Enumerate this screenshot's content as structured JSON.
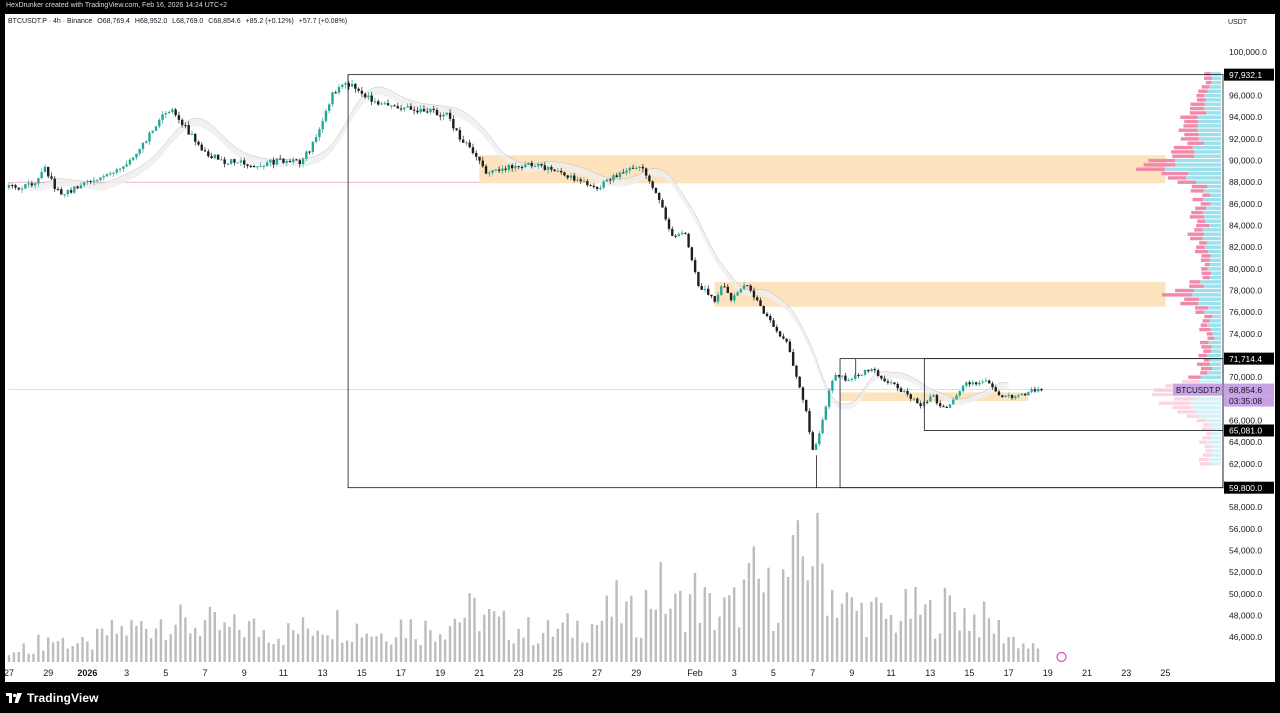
{
  "header": {
    "credit": "HexDrunker created with TradingView.com, Feb 16, 2026 14:24 UTC+2"
  },
  "legend": {
    "symbol": "BTCUSDT.P · 4h · Binance",
    "open": "O68,769.4",
    "high": "H68,952.0",
    "low": "L68,769.0",
    "close": "C68,854.6",
    "change": "+85.2 (+0.12%)",
    "change2": "+57.7 (+0.08%)"
  },
  "currency": "USDT",
  "footer": {
    "brand": "TradingView"
  },
  "chart_data": {
    "type": "candlestick",
    "timeframe": "4h",
    "ylim": [
      45000,
      101500
    ],
    "y_ticks": [
      46000,
      48000,
      50000,
      52000,
      54000,
      56000,
      58000,
      60000,
      62000,
      64000,
      66000,
      68000,
      70000,
      72000,
      74000,
      76000,
      78000,
      80000,
      82000,
      84000,
      86000,
      88000,
      90000,
      92000,
      94000,
      96000,
      98000,
      100000
    ],
    "y_tick_labels": [
      "46,000.0",
      "48,000.0",
      "50,000.0",
      "52,000.0",
      "54,000.0",
      "56,000.0",
      "58,000.0",
      "",
      "62,000.0",
      "64,000.0",
      "66,000.0",
      "",
      "70,000.0",
      "",
      "74,000.0",
      "76,000.0",
      "78,000.0",
      "80,000.0",
      "82,000.0",
      "84,000.0",
      "86,000.0",
      "88,000.0",
      "90,000.0",
      "92,000.0",
      "94,000.0",
      "96,000.0",
      "",
      "100,000.0"
    ],
    "x_ticks": [
      {
        "day": -2,
        "label": "27"
      },
      {
        "day": 0,
        "label": "29"
      },
      {
        "day": 2,
        "label": "2026",
        "bold": true
      },
      {
        "day": 4,
        "label": "3"
      },
      {
        "day": 6,
        "label": "5"
      },
      {
        "day": 8,
        "label": "7"
      },
      {
        "day": 10,
        "label": "9"
      },
      {
        "day": 12,
        "label": "11"
      },
      {
        "day": 14,
        "label": "13"
      },
      {
        "day": 16,
        "label": "15"
      },
      {
        "day": 18,
        "label": "17"
      },
      {
        "day": 20,
        "label": "19"
      },
      {
        "day": 22,
        "label": "21"
      },
      {
        "day": 24,
        "label": "23"
      },
      {
        "day": 26,
        "label": "25"
      },
      {
        "day": 28,
        "label": "27"
      },
      {
        "day": 30,
        "label": "29"
      },
      {
        "day": 33,
        "label": "Feb"
      },
      {
        "day": 35,
        "label": "3"
      },
      {
        "day": 37,
        "label": "5"
      },
      {
        "day": 39,
        "label": "7"
      },
      {
        "day": 41,
        "label": "9"
      },
      {
        "day": 43,
        "label": "11"
      },
      {
        "day": 45,
        "label": "13"
      },
      {
        "day": 47,
        "label": "15"
      },
      {
        "day": 49,
        "label": "17"
      },
      {
        "day": 51,
        "label": "19"
      },
      {
        "day": 53,
        "label": "21"
      },
      {
        "day": 55,
        "label": "23"
      },
      {
        "day": 57,
        "label": "25"
      }
    ],
    "price_path": [
      [
        -2.0,
        87500
      ],
      [
        -1.0,
        87600
      ],
      [
        -0.5,
        87800
      ],
      [
        0.0,
        89200
      ],
      [
        0.6,
        87200
      ],
      [
        1.2,
        87000
      ],
      [
        2.0,
        88000
      ],
      [
        3.0,
        88400
      ],
      [
        4.0,
        89500
      ],
      [
        5.0,
        91500
      ],
      [
        5.8,
        93800
      ],
      [
        6.5,
        94500
      ],
      [
        7.2,
        93000
      ],
      [
        8.0,
        91000
      ],
      [
        9.0,
        90000
      ],
      [
        10.0,
        89800
      ],
      [
        10.8,
        89600
      ],
      [
        12.0,
        90000
      ],
      [
        13.0,
        89900
      ],
      [
        13.6,
        91200
      ],
      [
        14.2,
        93800
      ],
      [
        14.7,
        96200
      ],
      [
        15.3,
        97400
      ],
      [
        16.0,
        96300
      ],
      [
        17.0,
        95200
      ],
      [
        18.0,
        94800
      ],
      [
        19.5,
        94600
      ],
      [
        20.5,
        94200
      ],
      [
        21.2,
        92000
      ],
      [
        22.0,
        90500
      ],
      [
        22.5,
        88600
      ],
      [
        23.0,
        89200
      ],
      [
        23.8,
        89500
      ],
      [
        25.0,
        89700
      ],
      [
        26.0,
        89000
      ],
      [
        27.0,
        88400
      ],
      [
        28.0,
        87300
      ],
      [
        28.8,
        88300
      ],
      [
        29.6,
        89000
      ],
      [
        30.3,
        89700
      ],
      [
        30.9,
        88100
      ],
      [
        31.5,
        85500
      ],
      [
        32.0,
        82800
      ],
      [
        32.6,
        83500
      ],
      [
        33.3,
        78700
      ],
      [
        34.2,
        76900
      ],
      [
        34.6,
        78700
      ],
      [
        35.0,
        77200
      ],
      [
        35.8,
        78500
      ],
      [
        36.5,
        76400
      ],
      [
        37.3,
        74500
      ],
      [
        37.9,
        73000
      ],
      [
        38.3,
        70200
      ],
      [
        38.8,
        67200
      ],
      [
        39.2,
        63100
      ],
      [
        39.6,
        65200
      ],
      [
        40.0,
        68900
      ],
      [
        40.4,
        70400
      ],
      [
        40.9,
        69700
      ],
      [
        41.5,
        70300
      ],
      [
        42.2,
        70700
      ],
      [
        42.8,
        69800
      ],
      [
        43.4,
        69300
      ],
      [
        44.0,
        68300
      ],
      [
        44.7,
        67500
      ],
      [
        45.3,
        68300
      ],
      [
        45.8,
        67000
      ],
      [
        46.3,
        67800
      ],
      [
        46.9,
        69300
      ],
      [
        47.5,
        69500
      ],
      [
        48.0,
        69900
      ],
      [
        48.4,
        68900
      ],
      [
        48.9,
        68200
      ],
      [
        49.4,
        68200
      ],
      [
        49.9,
        68300
      ],
      [
        50.3,
        68800
      ],
      [
        50.7,
        68855
      ]
    ],
    "highs": [
      [
        15.3,
        97932
      ],
      [
        41.2,
        71714
      ]
    ],
    "lows": [
      [
        39.2,
        59800
      ]
    ],
    "zones": [
      {
        "from_day": 22.0,
        "to_day": 57.0,
        "low": 87900,
        "high": 90500,
        "color": "#fce3bd"
      },
      {
        "from_day": 34.0,
        "to_day": 57.0,
        "low": 76500,
        "high": 78800,
        "color": "#fce3bd"
      },
      {
        "from_day": 40.4,
        "to_day": 50.0,
        "low": 67800,
        "high": 68600,
        "color": "#fce3bd"
      }
    ],
    "boxes": [
      {
        "from_day": 15.3,
        "to_day": 60.5,
        "low": 59800,
        "high": 97932.1
      },
      {
        "from_day": 40.4,
        "to_day": 60.5,
        "low": 59800,
        "high": 71714.4
      },
      {
        "from_day": 44.7,
        "to_day": 60.5,
        "low": 65081,
        "high": 71714.4
      }
    ],
    "price_lines": [
      {
        "price": 88000,
        "color": "#f49ab0",
        "from_day": -2,
        "to_day": 22.0
      },
      {
        "price": 68854.6,
        "color": "#f1c7d4",
        "from_day": -2,
        "to_day": 60.5
      }
    ],
    "price_labels": [
      {
        "price": 97932.1,
        "text": "97,932.1",
        "bg": "#000000",
        "fg": "#ffffff"
      },
      {
        "price": 71714.4,
        "text": "71,714.4",
        "bg": "#000000",
        "fg": "#ffffff"
      },
      {
        "price": 65081.0,
        "text": "65,081.0",
        "bg": "#000000",
        "fg": "#ffffff"
      },
      {
        "price": 59800.0,
        "text": "59,800.0",
        "bg": "#000000",
        "fg": "#ffffff"
      },
      {
        "price": 68854.6,
        "text": "68,854.6",
        "bg": "#c8a2e2",
        "fg": "#131722"
      }
    ],
    "current_symbol_tag": "BTCUSDT.P",
    "countdown": "03:35:08",
    "volume_peaks": [
      [
        -2,
        5
      ],
      [
        0,
        18
      ],
      [
        1,
        16
      ],
      [
        2,
        12
      ],
      [
        3,
        22
      ],
      [
        5,
        28
      ],
      [
        6,
        35
      ],
      [
        7,
        28
      ],
      [
        8,
        30
      ],
      [
        9,
        24
      ],
      [
        10,
        27
      ],
      [
        12,
        22
      ],
      [
        13,
        25
      ],
      [
        14,
        32
      ],
      [
        15,
        30
      ],
      [
        16,
        26
      ],
      [
        17,
        22
      ],
      [
        18,
        30
      ],
      [
        19,
        25
      ],
      [
        20,
        28
      ],
      [
        21,
        36
      ],
      [
        22,
        38
      ],
      [
        23,
        28
      ],
      [
        24,
        26
      ],
      [
        25,
        22
      ],
      [
        26,
        24
      ],
      [
        27,
        28
      ],
      [
        28,
        30
      ],
      [
        29,
        42
      ],
      [
        30,
        32
      ],
      [
        31,
        58
      ],
      [
        32,
        40
      ],
      [
        33,
        52
      ],
      [
        34,
        36
      ],
      [
        35,
        42
      ],
      [
        36,
        62
      ],
      [
        37,
        48
      ],
      [
        38,
        70
      ],
      [
        39,
        90
      ],
      [
        40,
        55
      ],
      [
        41,
        40
      ],
      [
        42,
        38
      ],
      [
        43,
        32
      ],
      [
        44,
        40
      ],
      [
        45,
        36
      ],
      [
        46,
        42
      ],
      [
        47,
        36
      ],
      [
        48,
        30
      ],
      [
        49,
        20
      ],
      [
        50,
        12
      ],
      [
        50.7,
        8
      ]
    ],
    "colors": {
      "up": "#26a69a",
      "down": "#1e1e1e",
      "volume": "#bdbdbd",
      "ma": "#9e9e9e",
      "profile_blue": "#9ce0eb",
      "profile_pink": "#f08aa8",
      "axis_text": "#131722"
    }
  }
}
